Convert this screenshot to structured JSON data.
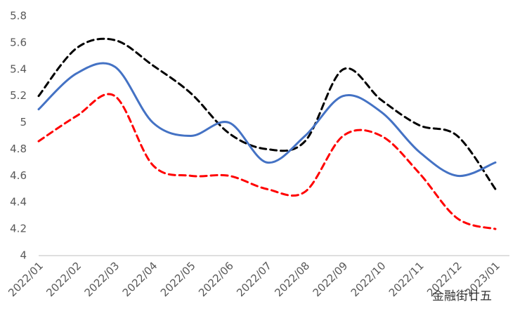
{
  "chart_data": {
    "type": "line",
    "categories": [
      "2022/01",
      "2022/02",
      "2022/03",
      "2022/04",
      "2022/05",
      "2022/06",
      "2022/07",
      "2022/08",
      "2022/09",
      "2022/10",
      "2022/11",
      "2022/12",
      "2023/01"
    ],
    "series": [
      {
        "color": "#000000",
        "dashed": true,
        "values": [
          5.2,
          5.56,
          5.62,
          5.43,
          5.22,
          4.92,
          4.8,
          4.86,
          5.4,
          5.17,
          4.98,
          4.9,
          4.5
        ]
      },
      {
        "color": "#4472c4",
        "dashed": false,
        "values": [
          5.1,
          5.37,
          5.42,
          5.0,
          4.9,
          5.0,
          4.7,
          4.9,
          5.2,
          5.08,
          4.78,
          4.6,
          4.7
        ]
      },
      {
        "color": "#ff0000",
        "dashed": true,
        "values": [
          4.86,
          5.05,
          5.2,
          4.68,
          4.6,
          4.6,
          4.5,
          4.48,
          4.9,
          4.9,
          4.62,
          4.28,
          4.2
        ]
      }
    ],
    "ylim": [
      4,
      5.8
    ],
    "yticks": [
      4,
      4.2,
      4.4,
      4.6,
      4.8,
      5,
      5.2,
      5.4,
      5.6,
      5.8
    ],
    "grid": false,
    "watermark": "金融街廿五"
  }
}
